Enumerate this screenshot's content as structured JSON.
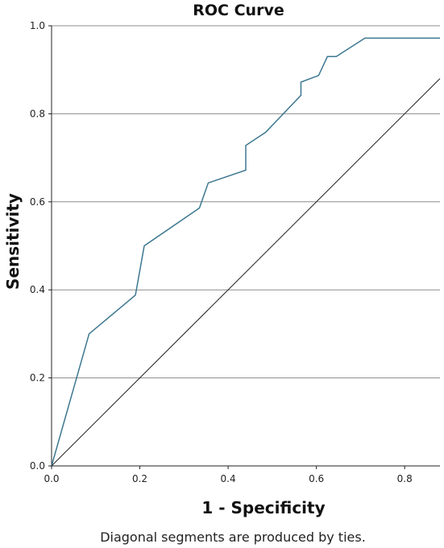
{
  "chart_data": {
    "type": "line",
    "title": "ROC Curve",
    "xlabel": "1 - Specificity",
    "ylabel": "Sensitivity",
    "footnote": "Diagonal segments are produced by ties.",
    "xlim": [
      0,
      0.88
    ],
    "ylim": [
      0,
      1
    ],
    "x_ticks": [
      "0.0",
      "0.2",
      "0.4",
      "0.6",
      "0.8"
    ],
    "y_ticks": [
      "0.0",
      "0.2",
      "0.4",
      "0.6",
      "0.8",
      "1.0"
    ],
    "grid": {
      "horizontal": true,
      "vertical": false
    },
    "series": [
      {
        "name": "",
        "color": "#3d7891",
        "x": [
          0.0,
          0.085,
          0.19,
          0.21,
          0.335,
          0.355,
          0.44,
          0.44,
          0.485,
          0.565,
          0.565,
          0.605,
          0.625,
          0.645,
          0.71,
          0.88
        ],
        "y": [
          0.0,
          0.3,
          0.388,
          0.5,
          0.586,
          0.643,
          0.672,
          0.728,
          0.758,
          0.842,
          0.872,
          0.887,
          0.93,
          0.93,
          0.972,
          0.972
        ]
      },
      {
        "name": "",
        "color": "#1f1f1f",
        "x": [
          0.0,
          0.88
        ],
        "y": [
          0.0,
          0.88
        ]
      }
    ]
  }
}
